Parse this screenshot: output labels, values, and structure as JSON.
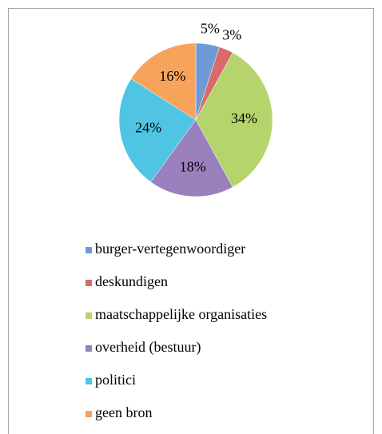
{
  "chart_data": {
    "type": "pie",
    "categories": [
      "burger-vertegenwoordiger",
      "deskundigen",
      "maatschappelijke organisaties",
      "overheid (bestuur)",
      "politici",
      "geen bron"
    ],
    "values": [
      5,
      3,
      34,
      18,
      24,
      16
    ],
    "value_labels": [
      "5%",
      "3%",
      "34%",
      "18%",
      "24%",
      "16%"
    ],
    "colors": [
      "#6f9bd5",
      "#d9696b",
      "#b6d46c",
      "#9a80bd",
      "#4fc4e3",
      "#f7a35c"
    ],
    "legend": "bottom"
  }
}
